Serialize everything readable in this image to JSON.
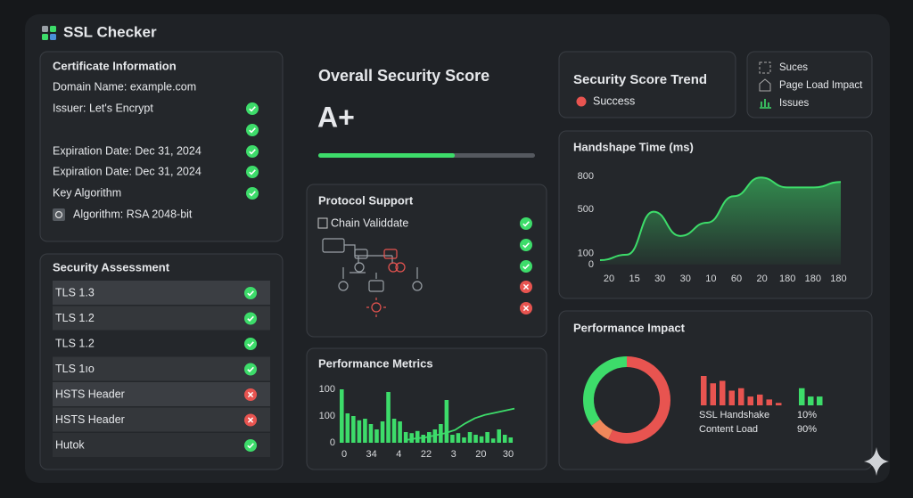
{
  "app": {
    "title": "SSL Checker"
  },
  "certificate": {
    "title": "Certificate Information",
    "rows": [
      "Domain Name: example.com",
      "Issuer: Let's Encrypt",
      "Expiration Date: Dec 31, 2024",
      "Expiration Date: Dec 31, 2024",
      "Key Algorithm",
      "Algorithm: RSA 2048-bit"
    ]
  },
  "assessment": {
    "title": "Security Assessment",
    "rows": [
      "TLS 1.3",
      "TLS 1.2",
      "TLS 1.2",
      "TLS 1ıo",
      "HSTS Header",
      "HSTS Header",
      "Hutok"
    ]
  },
  "score": {
    "title": "Overall Security Score",
    "grade": "A+",
    "progress": 63
  },
  "protocol": {
    "title": "Protocol Support",
    "item": "Chain Validdate"
  },
  "trend": {
    "title": "Security Score Trend",
    "legend": "Success"
  },
  "legend": [
    "Suces",
    "Page Load Impact",
    "Issues"
  ],
  "handshake": {
    "type": "line",
    "title": "Handshape Time (ms)",
    "categories": [
      "20",
      "15",
      "30",
      "30",
      "10",
      "60",
      "20",
      "180",
      "180",
      "180"
    ],
    "values": [
      40,
      90,
      480,
      260,
      380,
      620,
      790,
      700,
      700,
      750
    ],
    "ylim": [
      0,
      800
    ],
    "yticks": [
      0,
      100,
      500,
      800
    ],
    "color": "#3ddc6a"
  },
  "metrics": {
    "type": "bar",
    "title": "Performance Metrics",
    "y_labels": [
      "100",
      "100",
      "0"
    ],
    "x_labels": [
      "0",
      "34",
      "4",
      "22",
      "3",
      "20",
      "30"
    ],
    "ylim": [
      0,
      100
    ],
    "values": [
      100,
      55,
      50,
      42,
      45,
      35,
      25,
      40,
      95,
      45,
      40,
      20,
      18,
      22,
      15,
      20,
      25,
      35,
      80,
      15,
      18,
      10,
      20,
      15,
      12,
      20,
      8,
      25,
      15,
      10
    ],
    "trend": [
      5,
      8,
      10,
      14,
      18,
      24,
      36,
      46,
      52,
      56,
      60,
      64
    ],
    "color": "#3ddc6a",
    "trend_color": "#3ddc6a"
  },
  "impact": {
    "type": "pie",
    "title": "Performance Impact",
    "donut": [
      35,
      8,
      57
    ],
    "donut_colors": [
      "#3ddc6a",
      "#f0875a",
      "#e85450"
    ],
    "bars_red": [
      60,
      45,
      50,
      30,
      35,
      18,
      22,
      12,
      5
    ],
    "bars_green": [
      35,
      18,
      18
    ],
    "labels": [
      "SSL Handshake",
      "Content Load"
    ],
    "values": [
      10,
      90
    ],
    "value_labels": [
      "10%",
      "90%"
    ]
  }
}
